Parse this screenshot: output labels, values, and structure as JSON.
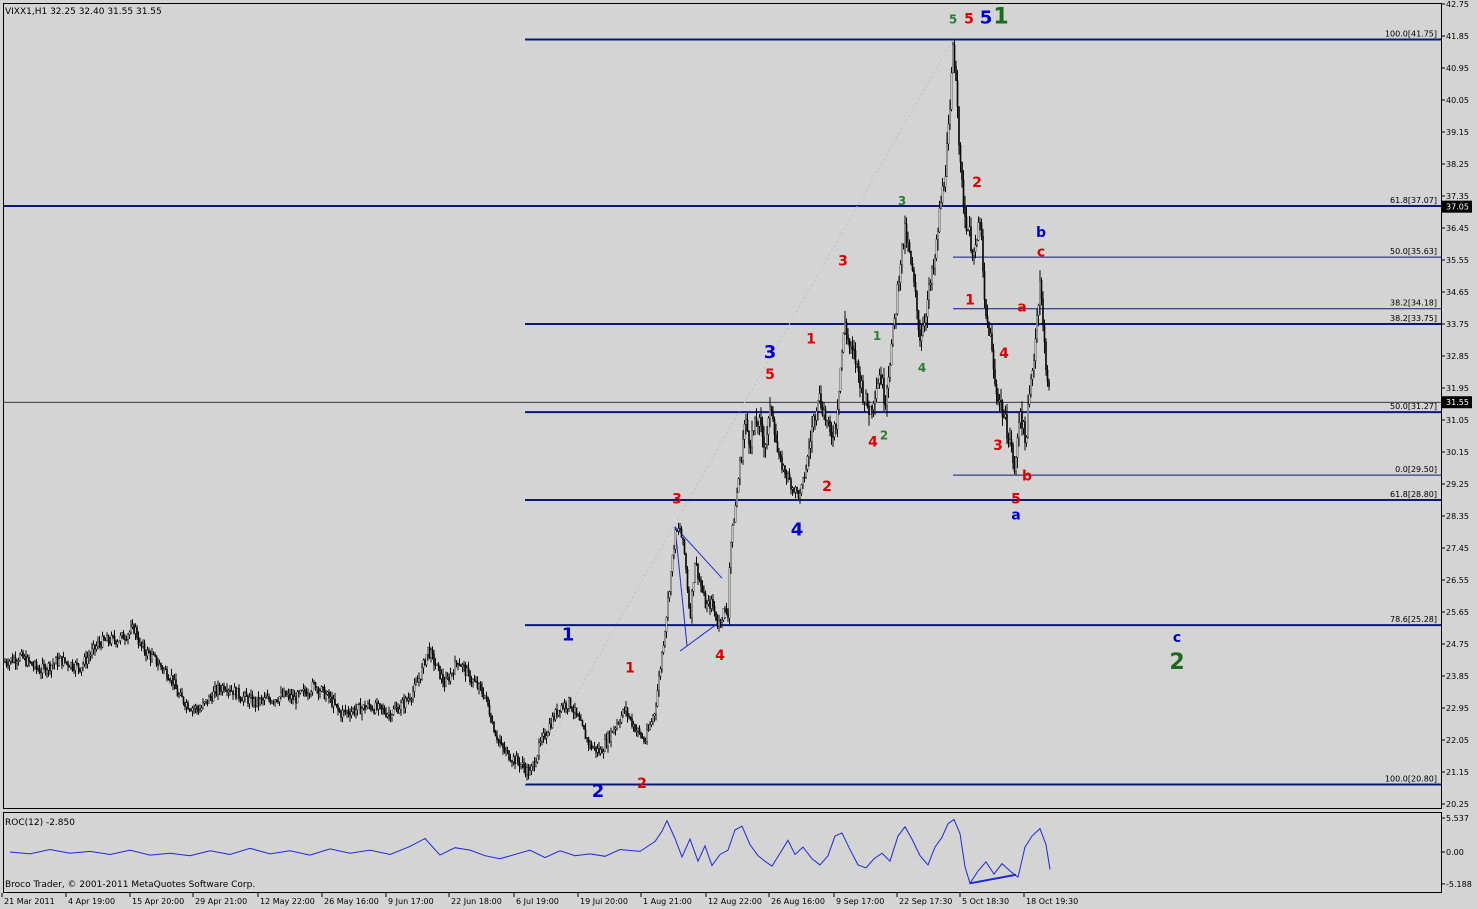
{
  "window_info": {
    "symbol_info": "VIXX1,H1  32.25 32.40 31.55 31.55",
    "copyright": "Broco Trader, © 2001-2011 MetaQuotes Software Corp."
  },
  "chart_data": [
    {
      "type": "candlestick",
      "symbol": "VIXX1",
      "timeframe": "H1",
      "ohlc_last": {
        "open": 32.25,
        "high": 32.4,
        "low": 31.55,
        "close": 31.55
      },
      "ylim": [
        20.3,
        42.75
      ],
      "y_ticks": [
        "42.75",
        "41.85",
        "40.95",
        "40.05",
        "39.15",
        "38.25",
        "37.35",
        "36.45",
        "35.55",
        "34.65",
        "33.75",
        "32.85",
        "31.95",
        "31.05",
        "30.15",
        "29.25",
        "28.35",
        "27.45",
        "26.55",
        "25.65",
        "24.75",
        "23.85",
        "22.95",
        "22.05",
        "21.15",
        "20.25"
      ],
      "x_ticks": [
        "21 Mar 2011",
        "4 Apr 19:00",
        "15 Apr 20:00",
        "29 Apr 21:00",
        "12 May 22:00",
        "26 May 16:00",
        "9 Jun 17:00",
        "22 Jun 18:00",
        "6 Jul 19:00",
        "19 Jul 20:00",
        "1 Aug 21:00",
        "12 Aug 22:00",
        "26 Aug 16:00",
        "9 Sep 17:00",
        "22 Sep 17:30",
        "5 Oct 18:30",
        "18 Oct 19:30"
      ],
      "price_path": [
        [
          0,
          24.2
        ],
        [
          20,
          24.4
        ],
        [
          40,
          24.0
        ],
        [
          60,
          24.3
        ],
        [
          80,
          24.1
        ],
        [
          100,
          24.8
        ],
        [
          120,
          24.9
        ],
        [
          135,
          25.2
        ],
        [
          140,
          24.7
        ],
        [
          155,
          24.3
        ],
        [
          165,
          24.0
        ],
        [
          172,
          23.8
        ],
        [
          178,
          23.3
        ],
        [
          190,
          23.0
        ],
        [
          200,
          22.9
        ],
        [
          215,
          23.4
        ],
        [
          225,
          23.6
        ],
        [
          240,
          23.3
        ],
        [
          255,
          23.1
        ],
        [
          270,
          23.2
        ],
        [
          285,
          23.3
        ],
        [
          295,
          23.2
        ],
        [
          305,
          23.4
        ],
        [
          315,
          23.6
        ],
        [
          330,
          23.2
        ],
        [
          340,
          22.8
        ],
        [
          355,
          22.9
        ],
        [
          370,
          23.0
        ],
        [
          390,
          22.8
        ],
        [
          405,
          23.1
        ],
        [
          415,
          23.5
        ],
        [
          422,
          24.0
        ],
        [
          428,
          24.6
        ],
        [
          435,
          24.2
        ],
        [
          445,
          23.6
        ],
        [
          458,
          24.3
        ],
        [
          470,
          23.8
        ],
        [
          485,
          23.3
        ],
        [
          495,
          22.3
        ],
        [
          502,
          21.8
        ],
        [
          510,
          21.6
        ],
        [
          520,
          21.4
        ],
        [
          530,
          21.1
        ],
        [
          540,
          21.9
        ],
        [
          550,
          22.5
        ],
        [
          560,
          23.0
        ],
        [
          570,
          23.1
        ],
        [
          580,
          22.5
        ],
        [
          590,
          21.9
        ],
        [
          600,
          21.7
        ],
        [
          612,
          22.3
        ],
        [
          625,
          22.9
        ],
        [
          635,
          22.4
        ],
        [
          645,
          22.0
        ],
        [
          655,
          22.9
        ],
        [
          660,
          24.0
        ],
        [
          665,
          25.2
        ],
        [
          670,
          26.5
        ],
        [
          675,
          27.8
        ],
        [
          680,
          28.0
        ],
        [
          685,
          27.2
        ],
        [
          690,
          25.5
        ],
        [
          695,
          27.1
        ],
        [
          700,
          26.5
        ],
        [
          706,
          25.8
        ],
        [
          712,
          25.9
        ],
        [
          718,
          25.3
        ],
        [
          724,
          25.7
        ],
        [
          728,
          25.6
        ],
        [
          730,
          27.4
        ],
        [
          735,
          28.5
        ],
        [
          740,
          29.8
        ],
        [
          745,
          31.0
        ],
        [
          750,
          30.5
        ],
        [
          758,
          31.0
        ],
        [
          765,
          30.4
        ],
        [
          772,
          31.5
        ],
        [
          778,
          30.0
        ],
        [
          785,
          29.6
        ],
        [
          792,
          29.2
        ],
        [
          800,
          28.9
        ],
        [
          806,
          29.7
        ],
        [
          812,
          30.8
        ],
        [
          818,
          31.8
        ],
        [
          823,
          31.4
        ],
        [
          830,
          30.6
        ],
        [
          836,
          31.0
        ],
        [
          840,
          32.4
        ],
        [
          845,
          33.8
        ],
        [
          850,
          33.0
        ],
        [
          855,
          32.8
        ],
        [
          860,
          32.2
        ],
        [
          865,
          31.6
        ],
        [
          870,
          31.3
        ],
        [
          875,
          31.9
        ],
        [
          880,
          32.4
        ],
        [
          885,
          31.6
        ],
        [
          890,
          32.8
        ],
        [
          895,
          33.9
        ],
        [
          900,
          35.5
        ],
        [
          905,
          36.3
        ],
        [
          910,
          35.6
        ],
        [
          915,
          34.6
        ],
        [
          920,
          33.4
        ],
        [
          925,
          34.0
        ],
        [
          930,
          34.8
        ],
        [
          935,
          35.5
        ],
        [
          940,
          37.0
        ],
        [
          945,
          38.0
        ],
        [
          950,
          39.6
        ],
        [
          953,
          41.6
        ],
        [
          957,
          40.5
        ],
        [
          960,
          38.2
        ],
        [
          965,
          36.8
        ],
        [
          970,
          36.2
        ],
        [
          975,
          35.6
        ],
        [
          980,
          36.8
        ],
        [
          985,
          34.0
        ],
        [
          990,
          33.5
        ],
        [
          995,
          32.0
        ],
        [
          1000,
          31.6
        ],
        [
          1005,
          31.0
        ],
        [
          1010,
          30.5
        ],
        [
          1015,
          29.5
        ],
        [
          1020,
          31.5
        ],
        [
          1025,
          30.4
        ],
        [
          1030,
          31.8
        ],
        [
          1035,
          33.2
        ],
        [
          1040,
          35.1
        ],
        [
          1043,
          33.6
        ],
        [
          1047,
          32.4
        ],
        [
          1050,
          31.55
        ]
      ],
      "horizontal_lines": [
        {
          "value": 41.75,
          "label": "100.0[41.75]",
          "span": "right"
        },
        {
          "value": 37.07,
          "label": "61.8[37.07]",
          "span": "full"
        },
        {
          "value": 35.63,
          "label": "50.0[35.63]",
          "span": "short"
        },
        {
          "value": 34.18,
          "label": "38.2[34.18]",
          "span": "short"
        },
        {
          "value": 33.75,
          "label": "38.2[33.75]",
          "span": "right"
        },
        {
          "value": 31.27,
          "label": "50.0[31.27]",
          "span": "right"
        },
        {
          "value": 29.5,
          "label": "0.0[29.50]",
          "span": "short"
        },
        {
          "value": 28.8,
          "label": "61.8[28.80]",
          "span": "right"
        },
        {
          "value": 25.28,
          "label": "78.6[25.28]",
          "span": "right"
        },
        {
          "value": 20.8,
          "label": "100.0[20.80]",
          "span": "right"
        }
      ],
      "price_markers": [
        {
          "value": 37.05,
          "label": "37.05"
        },
        {
          "value": 31.55,
          "label": "31.55"
        }
      ],
      "wave_labels": [
        {
          "text": "5",
          "color": "#2e7d2e",
          "size": 12,
          "x": 953,
          "y": 42.2
        },
        {
          "text": "5",
          "color": "#e00000",
          "size": 14,
          "x": 969,
          "y": 42.2
        },
        {
          "text": "5",
          "color": "#0000cc",
          "size": 18,
          "x": 986,
          "y": 42.2
        },
        {
          "text": "1",
          "color": "#1a6b1a",
          "size": 22,
          "x": 1001,
          "y": 42.2
        },
        {
          "text": "3",
          "color": "#2e7d2e",
          "size": 12,
          "x": 902,
          "y": 37.1
        },
        {
          "text": "2",
          "color": "#e00000",
          "size": 14,
          "x": 977,
          "y": 37.6
        },
        {
          "text": "b",
          "color": "#0000cc",
          "size": 14,
          "x": 1041,
          "y": 36.2
        },
        {
          "text": "c",
          "color": "#e00000",
          "size": 14,
          "x": 1041,
          "y": 35.65
        },
        {
          "text": "3",
          "color": "#e00000",
          "size": 14,
          "x": 843,
          "y": 35.4
        },
        {
          "text": "1",
          "color": "#e00000",
          "size": 14,
          "x": 970,
          "y": 34.3
        },
        {
          "text": "a",
          "color": "#e00000",
          "size": 14,
          "x": 1022,
          "y": 34.1
        },
        {
          "text": "1",
          "color": "#e00000",
          "size": 14,
          "x": 811,
          "y": 33.2
        },
        {
          "text": "1",
          "color": "#2e7d2e",
          "size": 12,
          "x": 877,
          "y": 33.3
        },
        {
          "text": "3",
          "color": "#0000cc",
          "size": 18,
          "x": 770,
          "y": 32.8
        },
        {
          "text": "4",
          "color": "#e00000",
          "size": 14,
          "x": 1004,
          "y": 32.8
        },
        {
          "text": "4",
          "color": "#2e7d2e",
          "size": 12,
          "x": 922,
          "y": 32.4
        },
        {
          "text": "5",
          "color": "#e00000",
          "size": 14,
          "x": 770,
          "y": 32.2
        },
        {
          "text": "2",
          "color": "#2e7d2e",
          "size": 12,
          "x": 884,
          "y": 30.5
        },
        {
          "text": "4",
          "color": "#e00000",
          "size": 14,
          "x": 873,
          "y": 30.3
        },
        {
          "text": "3",
          "color": "#e00000",
          "size": 14,
          "x": 998,
          "y": 30.2
        },
        {
          "text": "b",
          "color": "#e00000",
          "size": 14,
          "x": 1027,
          "y": 29.35
        },
        {
          "text": "2",
          "color": "#e00000",
          "size": 14,
          "x": 827,
          "y": 29.05
        },
        {
          "text": "3",
          "color": "#e00000",
          "size": 14,
          "x": 677,
          "y": 28.7
        },
        {
          "text": "5",
          "color": "#e00000",
          "size": 14,
          "x": 1016,
          "y": 28.7
        },
        {
          "text": "a",
          "color": "#0000cc",
          "size": 14,
          "x": 1016,
          "y": 28.25
        },
        {
          "text": "4",
          "color": "#0000cc",
          "size": 18,
          "x": 797,
          "y": 27.8
        },
        {
          "text": "1",
          "color": "#0000cc",
          "size": 18,
          "x": 568,
          "y": 24.85
        },
        {
          "text": "c",
          "color": "#0000cc",
          "size": 14,
          "x": 1177,
          "y": 24.8
        },
        {
          "text": "2",
          "color": "#1a6b1a",
          "size": 22,
          "x": 1177,
          "y": 24.05
        },
        {
          "text": "4",
          "color": "#e00000",
          "size": 14,
          "x": 720,
          "y": 24.3
        },
        {
          "text": "1",
          "color": "#e00000",
          "size": 14,
          "x": 630,
          "y": 23.95
        },
        {
          "text": "2",
          "color": "#e00000",
          "size": 14,
          "x": 642,
          "y": 20.7
        },
        {
          "text": "2",
          "color": "#0000cc",
          "size": 18,
          "x": 598,
          "y": 20.45
        }
      ]
    },
    {
      "type": "line",
      "indicator": "ROC(12)",
      "current_value": -2.85,
      "ylim": [
        -5.95,
        6.5
      ],
      "y_ticks": [
        "5.537",
        "0.00",
        "-5.188"
      ],
      "series": [
        [
          10,
          0
        ],
        [
          30,
          -0.3
        ],
        [
          50,
          0.4
        ],
        [
          70,
          -0.2
        ],
        [
          90,
          0.1
        ],
        [
          110,
          -0.4
        ],
        [
          130,
          0.3
        ],
        [
          150,
          -0.5
        ],
        [
          170,
          -0.2
        ],
        [
          190,
          -0.6
        ],
        [
          210,
          0.2
        ],
        [
          230,
          -0.4
        ],
        [
          250,
          0.6
        ],
        [
          270,
          -0.3
        ],
        [
          290,
          0.2
        ],
        [
          310,
          -0.5
        ],
        [
          330,
          0.5
        ],
        [
          350,
          -0.2
        ],
        [
          370,
          0.3
        ],
        [
          390,
          -0.4
        ],
        [
          410,
          0.9
        ],
        [
          425,
          2.2
        ],
        [
          440,
          -0.5
        ],
        [
          455,
          0.7
        ],
        [
          470,
          0.3
        ],
        [
          485,
          -0.6
        ],
        [
          500,
          -1.1
        ],
        [
          515,
          -0.4
        ],
        [
          530,
          0.3
        ],
        [
          545,
          -0.9
        ],
        [
          560,
          0.2
        ],
        [
          575,
          -0.6
        ],
        [
          590,
          -0.3
        ],
        [
          605,
          -0.7
        ],
        [
          620,
          0.4
        ],
        [
          640,
          0.1
        ],
        [
          655,
          1.7
        ],
        [
          662,
          3.4
        ],
        [
          667,
          5.1
        ],
        [
          675,
          2.2
        ],
        [
          682,
          -0.8
        ],
        [
          690,
          2.1
        ],
        [
          698,
          -1.5
        ],
        [
          705,
          1.0
        ],
        [
          712,
          -2.2
        ],
        [
          720,
          -0.4
        ],
        [
          728,
          0.3
        ],
        [
          735,
          3.6
        ],
        [
          742,
          4.2
        ],
        [
          750,
          1.2
        ],
        [
          758,
          -0.6
        ],
        [
          765,
          -1.5
        ],
        [
          772,
          -2.3
        ],
        [
          780,
          -0.2
        ],
        [
          788,
          1.9
        ],
        [
          795,
          -0.4
        ],
        [
          803,
          0.8
        ],
        [
          812,
          -1.1
        ],
        [
          820,
          -2.1
        ],
        [
          828,
          -0.6
        ],
        [
          835,
          2.6
        ],
        [
          842,
          3.1
        ],
        [
          850,
          0.4
        ],
        [
          858,
          -2.1
        ],
        [
          866,
          -2.6
        ],
        [
          874,
          -1.1
        ],
        [
          882,
          -0.2
        ],
        [
          890,
          -1.5
        ],
        [
          898,
          2.6
        ],
        [
          905,
          4.1
        ],
        [
          912,
          2.1
        ],
        [
          920,
          -0.6
        ],
        [
          928,
          -2.1
        ],
        [
          935,
          0.8
        ],
        [
          942,
          2.4
        ],
        [
          948,
          4.6
        ],
        [
          954,
          5.3
        ],
        [
          960,
          3.0
        ],
        [
          965,
          -2.4
        ],
        [
          970,
          -5.1
        ],
        [
          978,
          -3.1
        ],
        [
          986,
          -1.6
        ],
        [
          994,
          -3.6
        ],
        [
          1002,
          -1.9
        ],
        [
          1010,
          -3.1
        ],
        [
          1018,
          -4.1
        ],
        [
          1025,
          0.8
        ],
        [
          1032,
          2.6
        ],
        [
          1040,
          3.8
        ],
        [
          1046,
          1.2
        ],
        [
          1050,
          -2.85
        ]
      ],
      "trendline": [
        [
          970,
          -5.1
        ],
        [
          1016,
          -3.7
        ]
      ]
    }
  ]
}
